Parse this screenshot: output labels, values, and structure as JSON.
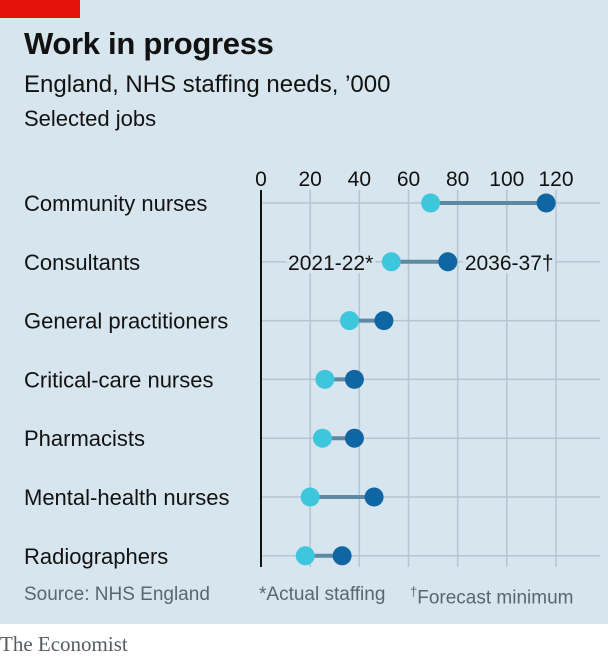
{
  "header": {
    "title": "Work in progress",
    "subtitle": "England, NHS staffing needs, ’000",
    "subsubtitle": "Selected jobs"
  },
  "footer": {
    "source": "Source: NHS England",
    "note_actual": "*Actual staffing",
    "note_forecast_mark": "†",
    "note_forecast": "Forecast minimum"
  },
  "brand": "The Economist",
  "colors": {
    "background": "#d7e5ee",
    "accent_red": "#e3120b",
    "actual_dot": "#3ec6dc",
    "forecast_dot": "#1065a3",
    "connector": "#5f88a3",
    "gridline": "#b4c6d1"
  },
  "chart_data": {
    "type": "dot-range",
    "title": "Work in progress",
    "subtitle": "England, NHS staffing needs, ’000",
    "xlim": [
      0,
      120
    ],
    "xticks": [
      "0",
      "20",
      "40",
      "60",
      "80",
      "100",
      "120"
    ],
    "grid": true,
    "categories": [
      "Community nurses",
      "Consultants",
      "General practitioners",
      "Critical-care nurses",
      "Pharmacists",
      "Mental-health nurses",
      "Radiographers"
    ],
    "series": [
      {
        "name": "2021-22*",
        "values": [
          69,
          53,
          36,
          26,
          25,
          20,
          18
        ]
      },
      {
        "name": "2036-37†",
        "values": [
          116,
          76,
          50,
          38,
          38,
          46,
          33
        ]
      }
    ]
  }
}
